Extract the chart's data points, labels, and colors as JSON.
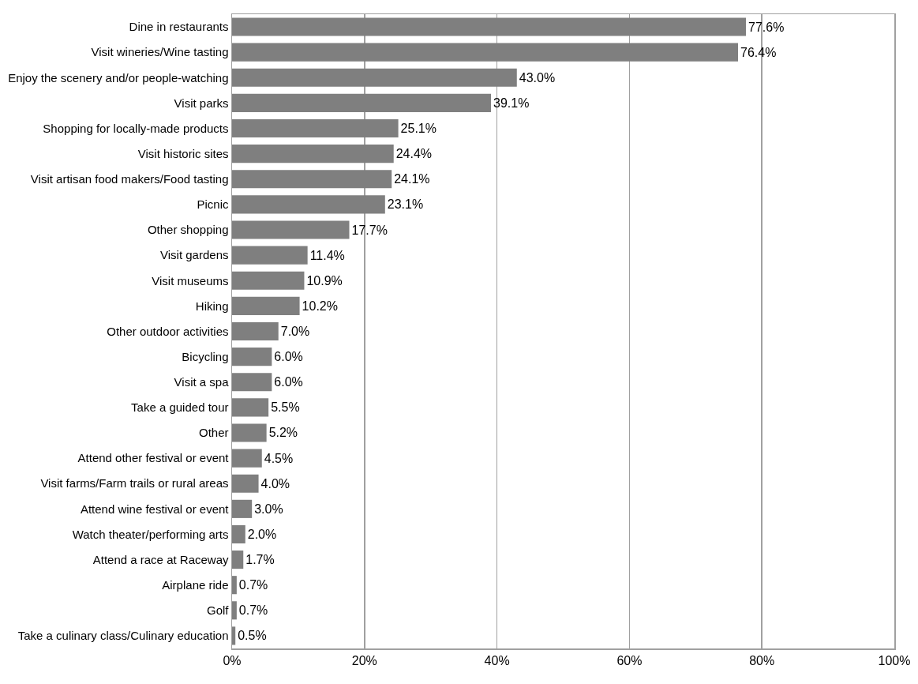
{
  "chart_data": {
    "type": "bar",
    "orientation": "horizontal",
    "categories": [
      "Dine in restaurants",
      "Visit wineries/Wine tasting",
      "Enjoy the scenery and/or people-watching",
      "Visit parks",
      "Shopping for locally-made products",
      "Visit historic sites",
      "Visit artisan food makers/Food tasting",
      "Picnic",
      "Other shopping",
      "Visit gardens",
      "Visit museums",
      "Hiking",
      "Other outdoor activities",
      "Bicycling",
      "Visit a spa",
      "Take a guided tour",
      "Other",
      "Attend other festival or event",
      "Visit farms/Farm trails or rural areas",
      "Attend wine festival or event",
      "Watch theater/performing arts",
      "Attend a race at Raceway",
      "Airplane ride",
      "Golf",
      "Take a culinary class/Culinary education"
    ],
    "values": [
      77.6,
      76.4,
      43.0,
      39.1,
      25.1,
      24.4,
      24.1,
      23.1,
      17.7,
      11.4,
      10.9,
      10.2,
      7.0,
      6.0,
      6.0,
      5.5,
      5.2,
      4.5,
      4.0,
      3.0,
      2.0,
      1.7,
      0.7,
      0.7,
      0.5
    ],
    "value_labels": [
      "77.6%",
      "76.4%",
      "43.0%",
      "39.1%",
      "25.1%",
      "24.4%",
      "24.1%",
      "23.1%",
      "17.7%",
      "11.4%",
      "10.9%",
      "10.2%",
      "7.0%",
      "6.0%",
      "6.0%",
      "5.5%",
      "5.2%",
      "4.5%",
      "4.0%",
      "3.0%",
      "2.0%",
      "1.7%",
      "0.7%",
      "0.7%",
      "0.5%"
    ],
    "color": "#7f7f7f",
    "xlim": [
      0,
      100
    ],
    "xticks": [
      {
        "value": 0,
        "label": "0%"
      },
      {
        "value": 20,
        "label": "20%"
      },
      {
        "value": 40,
        "label": "40%"
      },
      {
        "value": 60,
        "label": "60%"
      },
      {
        "value": 80,
        "label": "80%"
      },
      {
        "value": 100,
        "label": "100%"
      }
    ],
    "grid": "x"
  }
}
